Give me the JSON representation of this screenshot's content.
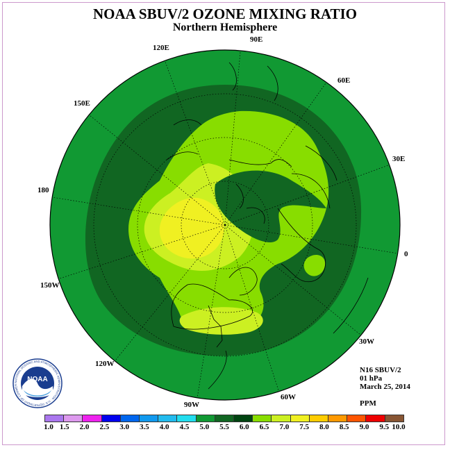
{
  "header": {
    "title": "NOAA SBUV/2 OZONE MIXING RATIO",
    "subtitle": "Northern Hemisphere"
  },
  "longitude_labels": [
    "90E",
    "60E",
    "30E",
    "0",
    "30W",
    "60W",
    "90W",
    "120W",
    "150W",
    "180",
    "150E",
    "120E"
  ],
  "info": {
    "satellite": "N16 SBUV/2",
    "level": "01 hPa",
    "date": "March 25, 2014",
    "units": "PPM"
  },
  "logo": {
    "text": "NOAA",
    "ring_text": "NATIONAL OCEANIC AND ATMOSPHERIC ADMINISTRATION · U.S. DEPARTMENT OF COMMERCE"
  },
  "colorbar": {
    "labels": [
      "1.0",
      "1.5",
      "2.0",
      "2.5",
      "3.0",
      "3.5",
      "4.0",
      "4.5",
      "5.0",
      "5.5",
      "6.0",
      "6.5",
      "7.0",
      "7.5",
      "8.0",
      "8.5",
      "9.0",
      "9.5",
      "10.0"
    ],
    "colors": [
      "#aa77ee",
      "#dd99ee",
      "#ee22ee",
      "#0000ee",
      "#0066ee",
      "#1199ee",
      "#22bbee",
      "#22ddee",
      "#119933",
      "#116622",
      "#004411",
      "#88dd00",
      "#ccf022",
      "#f0f022",
      "#ffcc00",
      "#ff9900",
      "#ff5500",
      "#ee0000",
      "#885533"
    ]
  },
  "map_levels": {
    "outer": "#119933",
    "band_5_5": "#116622",
    "band_6_0": "#88dd00",
    "band_6_5": "#ccf022",
    "band_7_0": "#f0f022"
  }
}
